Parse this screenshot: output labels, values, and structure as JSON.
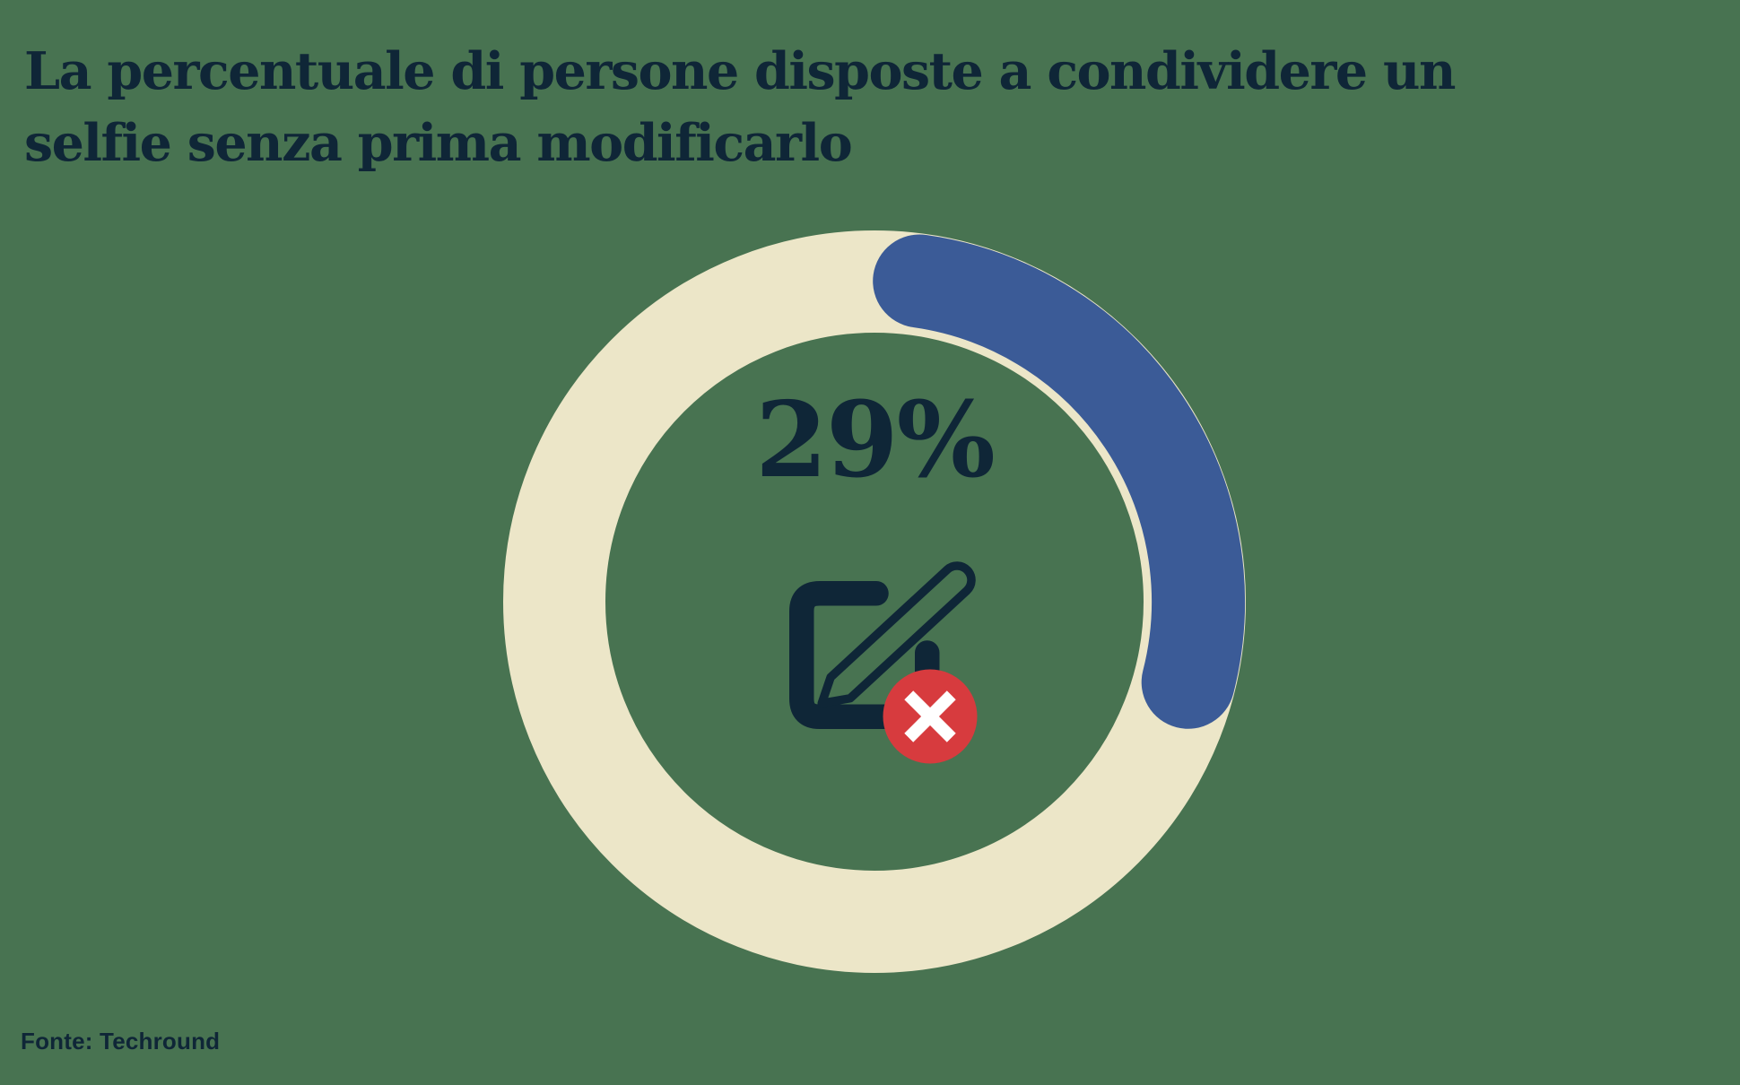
{
  "title": {
    "lines": [
      "La percentuale di persone disposte a condividere un",
      "selfie senza prima modificarlo"
    ],
    "full_text": "La percentuale di persone disposte a condividere un selfie senza prima modificarlo"
  },
  "source": {
    "label": "Fonte: Techround"
  },
  "colors": {
    "background_green": "#487351",
    "ring_cream": "#ece6c8",
    "arc_blue": "#3b5b97",
    "text_navy": "#0f2637",
    "badge_red": "#d73b3e",
    "badge_x_white": "#ffffff"
  },
  "chart_data": {
    "type": "donut",
    "title": "La percentuale di persone disposte a condividere un selfie senza prima modificarlo",
    "percent": 29,
    "remainder_percent": 71,
    "value_label": "29%",
    "source": "Fonte: Techround",
    "legend": "none",
    "arc_start": "top (12 o'clock), clockwise, rounded caps",
    "center_icon": "edit-square-pencil with red crossed-out badge",
    "ring_color": "#ece6c8",
    "value_color": "#3b5b97"
  }
}
